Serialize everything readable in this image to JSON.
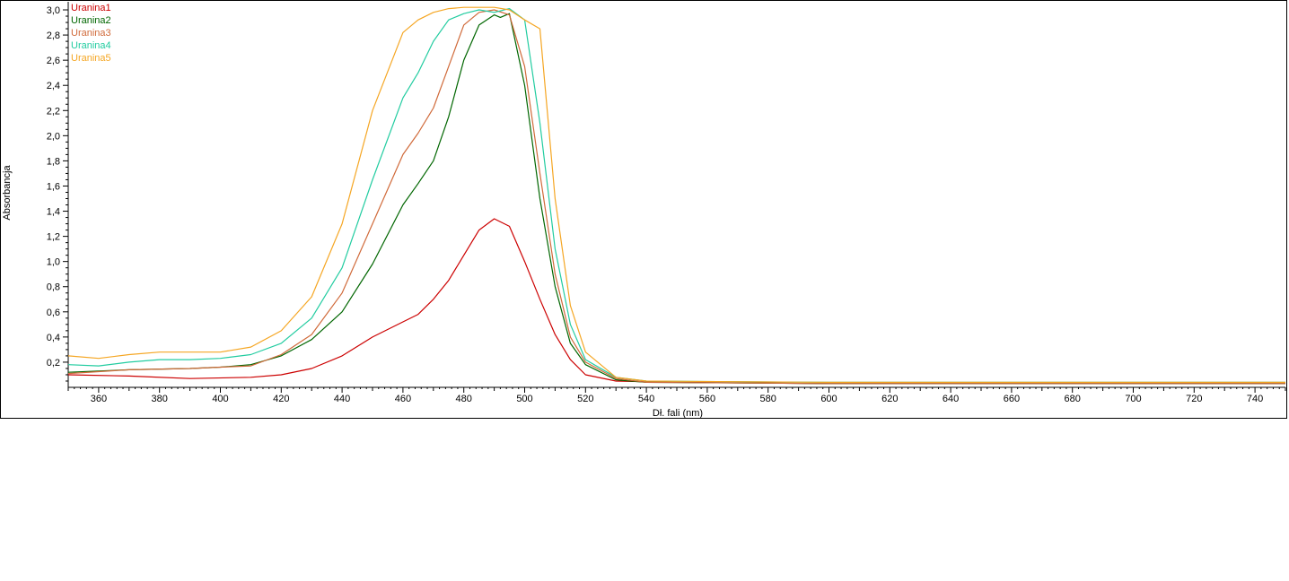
{
  "chart_data": {
    "type": "line",
    "title": "",
    "xlabel": "Dł. fali (nm)",
    "ylabel": "Absorbancja",
    "xlim": [
      350,
      750
    ],
    "ylim": [
      0.0,
      3.05
    ],
    "x_ticks": [
      360,
      380,
      400,
      420,
      440,
      460,
      480,
      500,
      520,
      540,
      560,
      580,
      600,
      620,
      640,
      660,
      680,
      700,
      720,
      740
    ],
    "y_ticks": [
      "0,2",
      "0,4",
      "0,6",
      "0,8",
      "1,0",
      "1,2",
      "1,4",
      "1,6",
      "1,8",
      "2,0",
      "2,2",
      "2,4",
      "2,6",
      "2,8",
      "3,0"
    ],
    "y_tick_values": [
      0.2,
      0.4,
      0.6,
      0.8,
      1.0,
      1.2,
      1.4,
      1.6,
      1.8,
      2.0,
      2.2,
      2.4,
      2.6,
      2.8,
      3.0
    ],
    "grid": false,
    "legend_position": "top-left",
    "series": [
      {
        "name": "Uranina1",
        "color": "#cc0000",
        "points": [
          [
            350,
            0.1
          ],
          [
            370,
            0.09
          ],
          [
            390,
            0.07
          ],
          [
            410,
            0.08
          ],
          [
            420,
            0.1
          ],
          [
            430,
            0.15
          ],
          [
            440,
            0.25
          ],
          [
            450,
            0.4
          ],
          [
            460,
            0.52
          ],
          [
            465,
            0.58
          ],
          [
            470,
            0.7
          ],
          [
            475,
            0.85
          ],
          [
            480,
            1.05
          ],
          [
            485,
            1.25
          ],
          [
            490,
            1.34
          ],
          [
            495,
            1.28
          ],
          [
            500,
            1.0
          ],
          [
            505,
            0.7
          ],
          [
            510,
            0.42
          ],
          [
            515,
            0.22
          ],
          [
            520,
            0.1
          ],
          [
            530,
            0.05
          ],
          [
            550,
            0.04
          ],
          [
            600,
            0.03
          ],
          [
            700,
            0.03
          ],
          [
            750,
            0.03
          ]
        ]
      },
      {
        "name": "Uranina2",
        "color": "#006600",
        "points": [
          [
            350,
            0.12
          ],
          [
            370,
            0.14
          ],
          [
            390,
            0.15
          ],
          [
            400,
            0.16
          ],
          [
            410,
            0.18
          ],
          [
            420,
            0.25
          ],
          [
            430,
            0.38
          ],
          [
            440,
            0.6
          ],
          [
            450,
            0.98
          ],
          [
            460,
            1.45
          ],
          [
            465,
            1.62
          ],
          [
            470,
            1.8
          ],
          [
            475,
            2.15
          ],
          [
            480,
            2.6
          ],
          [
            485,
            2.88
          ],
          [
            490,
            2.96
          ],
          [
            492,
            2.94
          ],
          [
            495,
            2.97
          ],
          [
            500,
            2.4
          ],
          [
            505,
            1.5
          ],
          [
            510,
            0.8
          ],
          [
            515,
            0.35
          ],
          [
            520,
            0.18
          ],
          [
            530,
            0.06
          ],
          [
            540,
            0.04
          ],
          [
            600,
            0.03
          ],
          [
            700,
            0.03
          ],
          [
            750,
            0.03
          ]
        ]
      },
      {
        "name": "Uranina3",
        "color": "#d06a3a",
        "points": [
          [
            350,
            0.11
          ],
          [
            370,
            0.14
          ],
          [
            390,
            0.15
          ],
          [
            400,
            0.16
          ],
          [
            410,
            0.17
          ],
          [
            420,
            0.26
          ],
          [
            430,
            0.42
          ],
          [
            440,
            0.75
          ],
          [
            450,
            1.3
          ],
          [
            460,
            1.85
          ],
          [
            465,
            2.02
          ],
          [
            470,
            2.22
          ],
          [
            475,
            2.55
          ],
          [
            480,
            2.88
          ],
          [
            485,
            2.98
          ],
          [
            490,
            3.0
          ],
          [
            495,
            2.96
          ],
          [
            500,
            2.55
          ],
          [
            505,
            1.7
          ],
          [
            510,
            0.9
          ],
          [
            515,
            0.4
          ],
          [
            520,
            0.2
          ],
          [
            530,
            0.07
          ],
          [
            540,
            0.04
          ],
          [
            600,
            0.03
          ],
          [
            700,
            0.03
          ],
          [
            750,
            0.03
          ]
        ]
      },
      {
        "name": "Uranina4",
        "color": "#22cca0",
        "points": [
          [
            350,
            0.18
          ],
          [
            360,
            0.17
          ],
          [
            370,
            0.2
          ],
          [
            380,
            0.22
          ],
          [
            390,
            0.22
          ],
          [
            400,
            0.23
          ],
          [
            410,
            0.26
          ],
          [
            420,
            0.35
          ],
          [
            430,
            0.55
          ],
          [
            440,
            0.95
          ],
          [
            450,
            1.65
          ],
          [
            460,
            2.3
          ],
          [
            465,
            2.5
          ],
          [
            470,
            2.75
          ],
          [
            475,
            2.92
          ],
          [
            480,
            2.97
          ],
          [
            485,
            3.0
          ],
          [
            490,
            2.98
          ],
          [
            495,
            3.01
          ],
          [
            500,
            2.92
          ],
          [
            505,
            2.1
          ],
          [
            510,
            1.1
          ],
          [
            515,
            0.5
          ],
          [
            520,
            0.22
          ],
          [
            530,
            0.08
          ],
          [
            540,
            0.05
          ],
          [
            600,
            0.04
          ],
          [
            700,
            0.04
          ],
          [
            750,
            0.04
          ]
        ]
      },
      {
        "name": "Uranina5",
        "color": "#f5a623",
        "points": [
          [
            350,
            0.25
          ],
          [
            360,
            0.23
          ],
          [
            370,
            0.26
          ],
          [
            380,
            0.28
          ],
          [
            390,
            0.28
          ],
          [
            400,
            0.28
          ],
          [
            410,
            0.32
          ],
          [
            420,
            0.45
          ],
          [
            430,
            0.72
          ],
          [
            440,
            1.3
          ],
          [
            450,
            2.2
          ],
          [
            460,
            2.82
          ],
          [
            465,
            2.92
          ],
          [
            470,
            2.98
          ],
          [
            475,
            3.01
          ],
          [
            480,
            3.02
          ],
          [
            485,
            3.02
          ],
          [
            490,
            3.02
          ],
          [
            495,
            3.0
          ],
          [
            500,
            2.92
          ],
          [
            505,
            2.85
          ],
          [
            510,
            1.5
          ],
          [
            515,
            0.65
          ],
          [
            520,
            0.28
          ],
          [
            530,
            0.08
          ],
          [
            540,
            0.05
          ],
          [
            600,
            0.04
          ],
          [
            700,
            0.04
          ],
          [
            750,
            0.04
          ]
        ]
      }
    ]
  }
}
